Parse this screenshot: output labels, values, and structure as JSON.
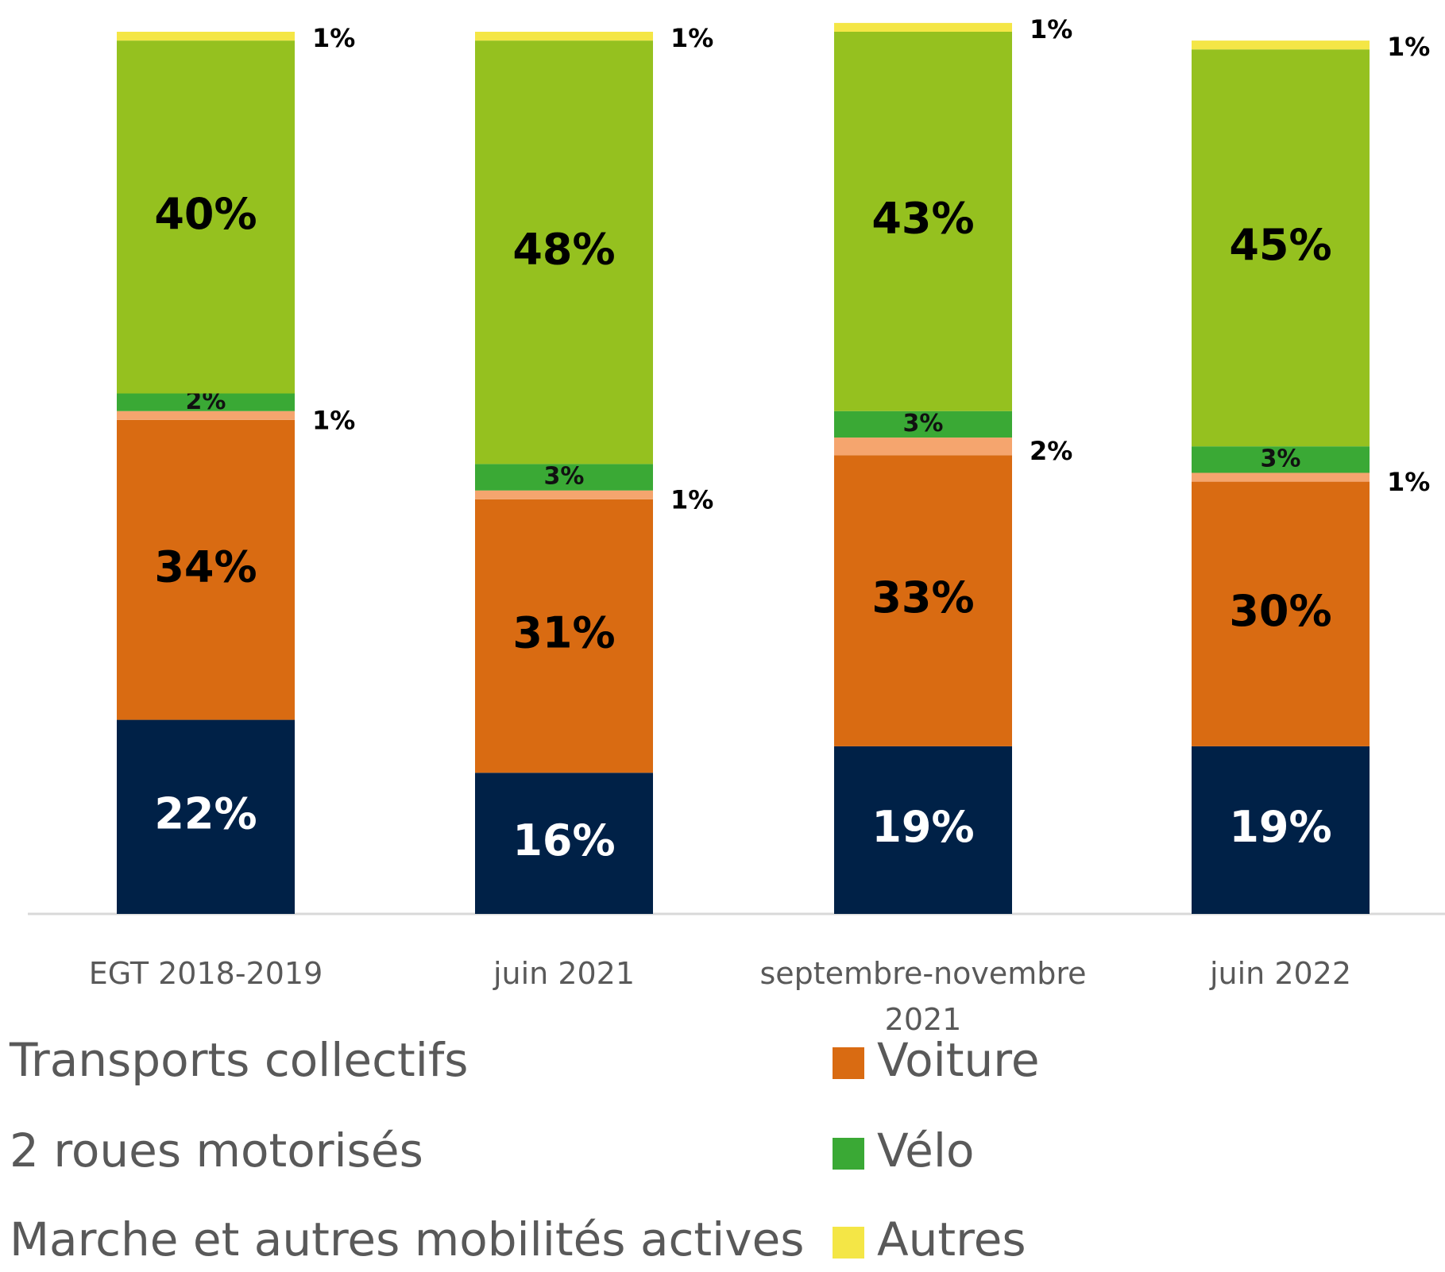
{
  "chart_data": {
    "type": "stacked_bar",
    "categories": [
      "EGT 2018-2019",
      "juin 2021",
      "septembre-novembre 2021",
      "juin 2022"
    ],
    "series": [
      {
        "name": "Transports collectifs",
        "color": "#002147",
        "values": [
          22,
          16,
          19,
          19
        ],
        "value_labels": [
          "22%",
          "16%",
          "19%",
          "19%"
        ]
      },
      {
        "name": "Voiture",
        "color": "#d96b12",
        "values": [
          34,
          31,
          33,
          30
        ],
        "value_labels": [
          "34%",
          "31%",
          "33%",
          "30%"
        ]
      },
      {
        "name": "2 roues motorisés",
        "color": "#f5a56e",
        "values": [
          1,
          1,
          2,
          1
        ],
        "value_labels": [
          "1%",
          "1%",
          "2%",
          "1%"
        ]
      },
      {
        "name": "Vélo",
        "color": "#3aa935",
        "values": [
          2,
          3,
          3,
          3
        ],
        "value_labels": [
          "2%",
          "3%",
          "3%",
          "3%"
        ]
      },
      {
        "name": "Marche et autres mobilités actives",
        "color": "#95c11f",
        "values": [
          40,
          48,
          43,
          45
        ],
        "value_labels": [
          "40%",
          "48%",
          "43%",
          "45%"
        ]
      },
      {
        "name": "Autres",
        "color": "#f4e646",
        "values": [
          1,
          1,
          1,
          1
        ],
        "value_labels": [
          "1%",
          "1%",
          "1%",
          "1%"
        ]
      }
    ],
    "ylim": [
      0,
      100
    ]
  }
}
